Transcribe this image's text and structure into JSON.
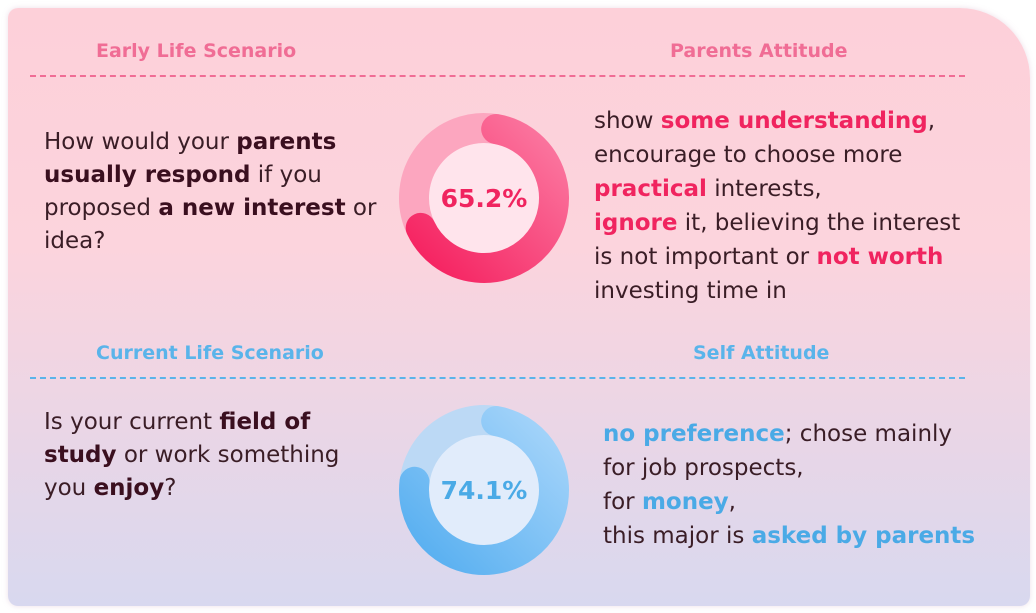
{
  "colors": {
    "pink_accent": "#f0245f",
    "pink_header": "#f06d95",
    "blue_accent": "#4aaae6",
    "blue_header": "#5ab4ea",
    "pink_track": "#fca6bf",
    "blue_track": "#bcd9f5"
  },
  "section_early": {
    "left_header": "Early Life Scenario",
    "right_header": "Parents Attitude",
    "question": {
      "p1": "How would your ",
      "b1": "parents usually respond",
      "p2": " if you proposed ",
      "b2": "a new interest",
      "p3": " or idea?"
    },
    "answer": {
      "l1a": "show ",
      "l1b": "some understanding",
      "l1c": ",",
      "l2": "encourage to choose more",
      "l3a": "practical",
      "l3b": " interests,",
      "l4a": "ignore",
      "l4b": " it, believing the interest",
      "l5a": "is not important or ",
      "l5b": "not worth",
      "l6": "investing time in"
    }
  },
  "section_current": {
    "left_header": "Current Life Scenario",
    "right_header": "Self Attitude",
    "question": {
      "p1": "Is your current ",
      "b1": "field of study",
      "p2": " or work something you ",
      "b2": "enjoy",
      "p3": "?"
    },
    "answer": {
      "l1a": "no preference",
      "l1b": "; chose mainly",
      "l2": "for job prospects,",
      "l3a": "for ",
      "l3b": "money",
      "l3c": ",",
      "l4a": "this major is ",
      "l4b": "asked by parents"
    }
  },
  "chart_data": [
    {
      "type": "pie",
      "values": [
        65.2,
        34.8
      ],
      "label": "65.2%"
    },
    {
      "type": "pie",
      "values": [
        74.1,
        25.9
      ],
      "label": "74.1%"
    }
  ]
}
